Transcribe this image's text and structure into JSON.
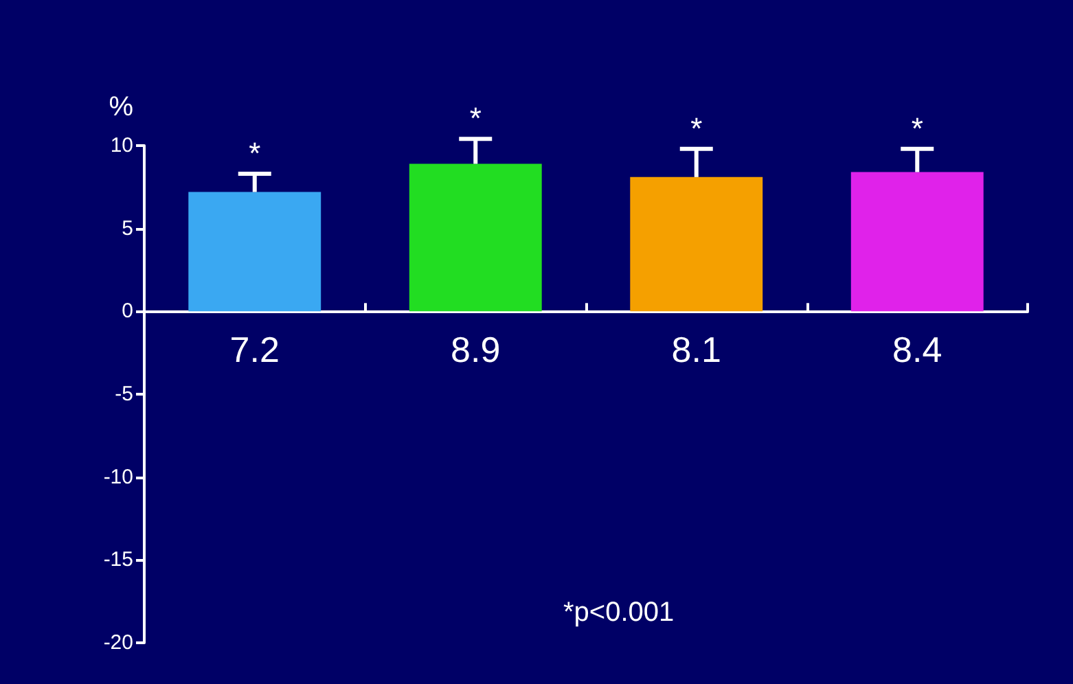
{
  "chart_data": {
    "type": "bar",
    "ylabel": "%",
    "categories": [
      null,
      null,
      null,
      null
    ],
    "values": [
      7.2,
      8.9,
      8.1,
      8.4
    ],
    "colors": [
      "#3aa8f2",
      "#22dd22",
      "#f5a000",
      "#e022ea"
    ],
    "errors": [
      [
        7.2,
        8.3
      ],
      [
        8.9,
        10.4
      ],
      [
        8.1,
        9.8
      ],
      [
        8.4,
        9.8
      ]
    ],
    "data_labels": true,
    "ylim": [
      -20,
      10
    ],
    "yticks": [
      -20,
      -15,
      -10,
      -5,
      0,
      5,
      10
    ],
    "annotations": [
      "*",
      "*",
      "*",
      "*",
      "*p<0.001"
    ]
  }
}
